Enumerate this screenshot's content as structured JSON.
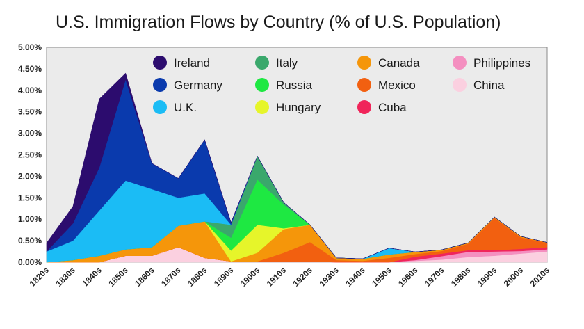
{
  "chart_data": {
    "type": "area",
    "stacked": true,
    "title": "U.S. Immigration Flows by Country (% of U.S. Population)",
    "xlabel": "",
    "ylabel": "",
    "categories": [
      "1820s",
      "1830s",
      "1840s",
      "1850s",
      "1860s",
      "1870s",
      "1880s",
      "1890s",
      "1900s",
      "1910s",
      "1920s",
      "1930s",
      "1940s",
      "1950s",
      "1960s",
      "1970s",
      "1980s",
      "1990s",
      "2000s",
      "2010s"
    ],
    "y_tick_labels": [
      "0.00%",
      "0.50%",
      "1.00%",
      "1.50%",
      "2.00%",
      "2.50%",
      "3.00%",
      "3.50%",
      "4.00%",
      "4.50%",
      "5.00%"
    ],
    "ylim": [
      0,
      5
    ],
    "y_unit": "%",
    "grid": false,
    "legend_position": "top-center",
    "series": [
      {
        "name": "China",
        "color": "#fbd0e0",
        "values": [
          0,
          0,
          0,
          0.15,
          0.15,
          0.35,
          0.1,
          0.02,
          0.02,
          0.02,
          0.02,
          0,
          0,
          0,
          0.03,
          0.06,
          0.12,
          0.15,
          0.2,
          0.25
        ]
      },
      {
        "name": "Philippines",
        "color": "#f48fc0",
        "values": [
          0,
          0,
          0,
          0,
          0,
          0,
          0,
          0,
          0,
          0,
          0,
          0,
          0,
          0,
          0.02,
          0.08,
          0.12,
          0.1,
          0.06,
          0.05
        ]
      },
      {
        "name": "Cuba",
        "color": "#f0255a",
        "values": [
          0,
          0,
          0,
          0,
          0,
          0,
          0,
          0,
          0,
          0,
          0,
          0,
          0,
          0,
          0.08,
          0.06,
          0.04,
          0.03,
          0.05,
          0.05
        ]
      },
      {
        "name": "Mexico",
        "color": "#f26010",
        "values": [
          0,
          0,
          0,
          0,
          0,
          0,
          0,
          0,
          0,
          0.2,
          0.45,
          0.05,
          0.03,
          0.1,
          0.06,
          0.06,
          0.15,
          0.75,
          0.27,
          0.1
        ]
      },
      {
        "name": "Canada",
        "color": "#f5960a",
        "values": [
          0,
          0.05,
          0.15,
          0.15,
          0.2,
          0.5,
          0.85,
          0,
          0.2,
          0.55,
          0.4,
          0.05,
          0.05,
          0.08,
          0.05,
          0.03,
          0.02,
          0.02,
          0.02,
          0.01
        ]
      },
      {
        "name": "Hungary",
        "color": "#e6f52a",
        "values": [
          0,
          0,
          0,
          0,
          0,
          0,
          0,
          0.25,
          0.65,
          0.02,
          0,
          0,
          0,
          0,
          0,
          0,
          0,
          0,
          0,
          0
        ]
      },
      {
        "name": "Russia",
        "color": "#1ee842",
        "values": [
          0,
          0,
          0,
          0,
          0,
          0,
          0,
          0.3,
          1.05,
          0.55,
          0,
          0,
          0,
          0,
          0,
          0,
          0,
          0,
          0,
          0
        ]
      },
      {
        "name": "Italy",
        "color": "#3aa86c",
        "values": [
          0,
          0,
          0,
          0,
          0,
          0,
          0,
          0.3,
          0.55,
          0.05,
          0,
          0,
          0,
          0,
          0,
          0,
          0,
          0,
          0,
          0
        ]
      },
      {
        "name": "U.K.",
        "color": "#1bbcf5",
        "values": [
          0.25,
          0.45,
          1.05,
          1.6,
          1.35,
          0.65,
          0.65,
          0,
          0,
          0,
          0,
          0,
          0,
          0.15,
          0,
          0,
          0,
          0,
          0,
          0
        ]
      },
      {
        "name": "Germany",
        "color": "#0a3aad",
        "values": [
          0,
          0.4,
          1.0,
          2.35,
          0.6,
          0.45,
          1.25,
          0.05,
          0,
          0,
          0,
          0,
          0,
          0,
          0,
          0,
          0,
          0,
          0,
          0
        ]
      },
      {
        "name": "Ireland",
        "color": "#2c0c6e",
        "values": [
          0.2,
          0.4,
          1.6,
          0.15,
          0,
          0,
          0,
          0,
          0,
          0,
          0,
          0,
          0,
          0,
          0,
          0,
          0,
          0,
          0,
          0
        ]
      }
    ],
    "legend": [
      {
        "name": "Ireland",
        "color": "#2c0c6e"
      },
      {
        "name": "Italy",
        "color": "#3aa86c"
      },
      {
        "name": "Canada",
        "color": "#f5960a"
      },
      {
        "name": "Philippines",
        "color": "#f48fc0"
      },
      {
        "name": "Germany",
        "color": "#0a3aad"
      },
      {
        "name": "Russia",
        "color": "#1ee842"
      },
      {
        "name": "Mexico",
        "color": "#f26010"
      },
      {
        "name": "China",
        "color": "#fbd0e0"
      },
      {
        "name": "U.K.",
        "color": "#1bbcf5"
      },
      {
        "name": "Hungary",
        "color": "#e6f52a"
      },
      {
        "name": "Cuba",
        "color": "#f0255a"
      }
    ]
  }
}
